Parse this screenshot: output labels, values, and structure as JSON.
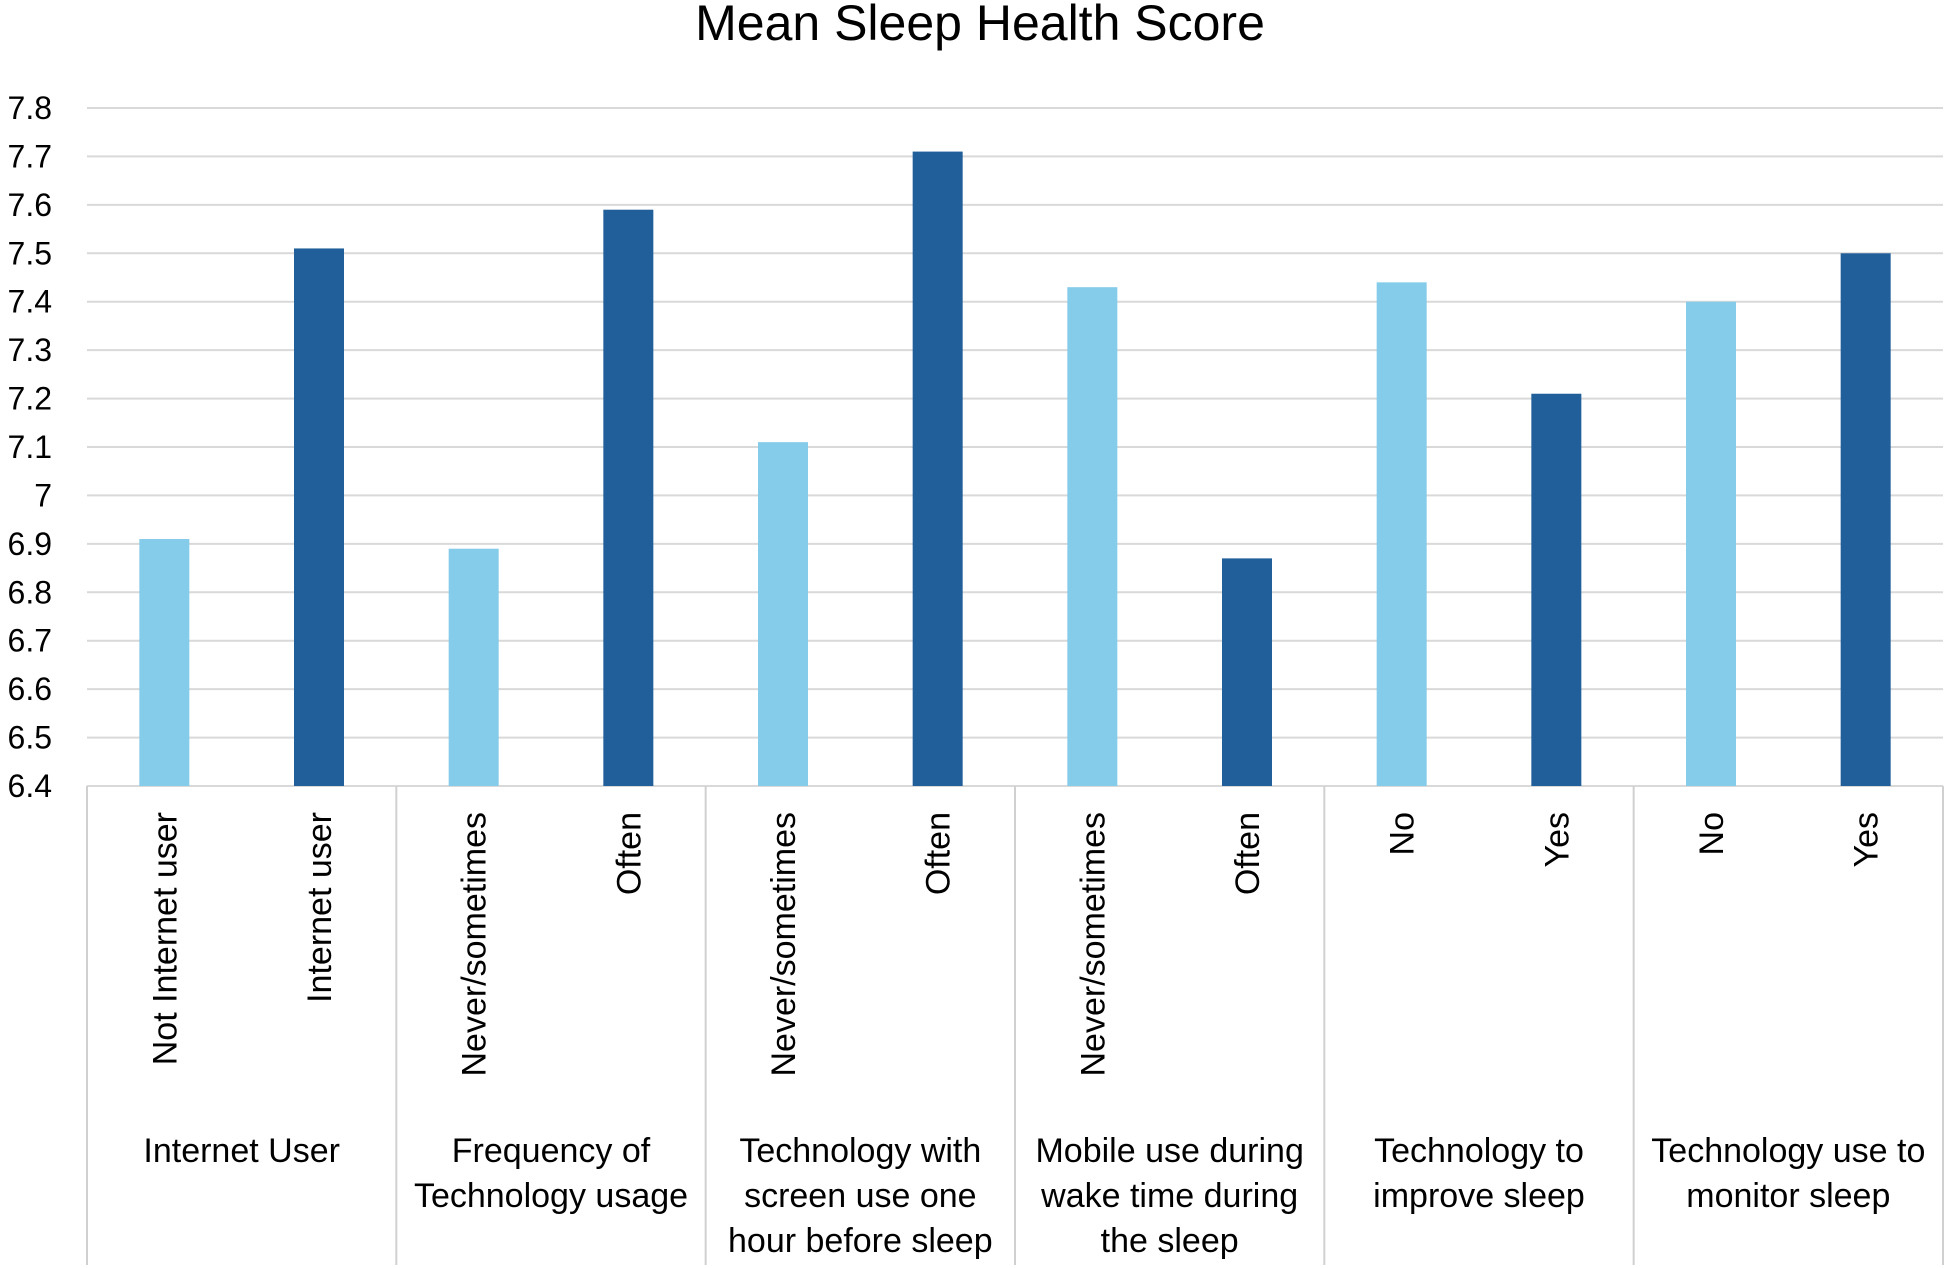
{
  "chart_data": {
    "type": "bar",
    "title": "Mean Sleep Health Score",
    "xlabel": "",
    "ylabel": "",
    "ylim": [
      6.4,
      7.8
    ],
    "ytick_step": 0.1,
    "ytick_labels": [
      "6.4",
      "6.5",
      "6.6",
      "6.7",
      "6.8",
      "6.9",
      "7",
      "7.1",
      "7.2",
      "7.3",
      "7.4",
      "7.5",
      "7.6",
      "7.7",
      "7.8"
    ],
    "grid": true,
    "legend": "none",
    "colors": {
      "light": "#85cbea",
      "dark": "#215f9a"
    },
    "groups": [
      {
        "label": "Internet User",
        "bars": [
          {
            "category": "Not Internet user",
            "value": 6.91,
            "color": "light"
          },
          {
            "category": "Internet user",
            "value": 7.51,
            "color": "dark"
          }
        ]
      },
      {
        "label": "Frequency of Technology usage",
        "bars": [
          {
            "category": "Never/sometimes",
            "value": 6.89,
            "color": "light"
          },
          {
            "category": "Often",
            "value": 7.59,
            "color": "dark"
          }
        ]
      },
      {
        "label": "Technology with screen use one hour before sleep",
        "bars": [
          {
            "category": "Never/sometimes",
            "value": 7.11,
            "color": "light"
          },
          {
            "category": "Often",
            "value": 7.71,
            "color": "dark"
          }
        ]
      },
      {
        "label": "Mobile use during wake time during the sleep",
        "bars": [
          {
            "category": "Never/sometimes",
            "value": 7.43,
            "color": "light"
          },
          {
            "category": "Often",
            "value": 6.87,
            "color": "dark"
          }
        ]
      },
      {
        "label": "Technology to improve sleep",
        "bars": [
          {
            "category": "No",
            "value": 7.44,
            "color": "light"
          },
          {
            "category": "Yes",
            "value": 7.21,
            "color": "dark"
          }
        ]
      },
      {
        "label": "Technology use to monitor sleep",
        "bars": [
          {
            "category": "No",
            "value": 7.4,
            "color": "light"
          },
          {
            "category": "Yes",
            "value": 7.5,
            "color": "dark"
          }
        ]
      }
    ]
  }
}
